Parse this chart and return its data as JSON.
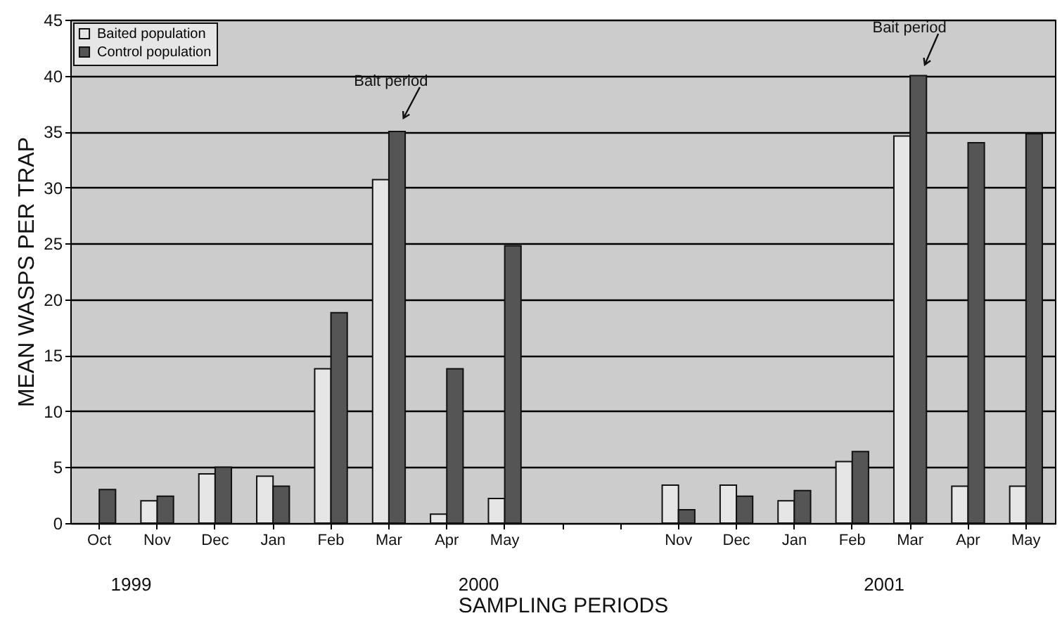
{
  "chart_data": {
    "type": "bar",
    "xlabel": "SAMPLING PERIODS",
    "ylabel": "MEAN WASPS PER TRAP",
    "categories": [
      "Oct",
      "Nov",
      "Dec",
      "Jan",
      "Feb",
      "Mar",
      "Apr",
      "May",
      null,
      null,
      "Nov",
      "Dec",
      "Jan",
      "Feb",
      "Mar",
      "Apr",
      "May"
    ],
    "series": [
      {
        "name": "Baited population",
        "color": "#e6e6e6",
        "values": [
          null,
          2.0,
          4.4,
          4.2,
          13.8,
          30.7,
          0.8,
          2.2,
          null,
          null,
          3.4,
          3.4,
          2.0,
          5.5,
          34.6,
          3.3,
          3.3
        ]
      },
      {
        "name": "Control population",
        "color": "#555555",
        "values": [
          3.0,
          2.4,
          5.0,
          3.3,
          18.8,
          35,
          13.8,
          24.8,
          null,
          null,
          1.2,
          2.4,
          2.9,
          6.4,
          40,
          34,
          34.8
        ]
      }
    ],
    "ylim": [
      0,
      45
    ],
    "yticks": [
      0,
      5,
      10,
      15,
      20,
      25,
      30,
      35,
      40,
      45
    ],
    "grid": "y",
    "legend": "top left",
    "annotations": [
      "Bait period",
      "Bait period",
      "1999",
      "2000",
      "2001"
    ]
  }
}
